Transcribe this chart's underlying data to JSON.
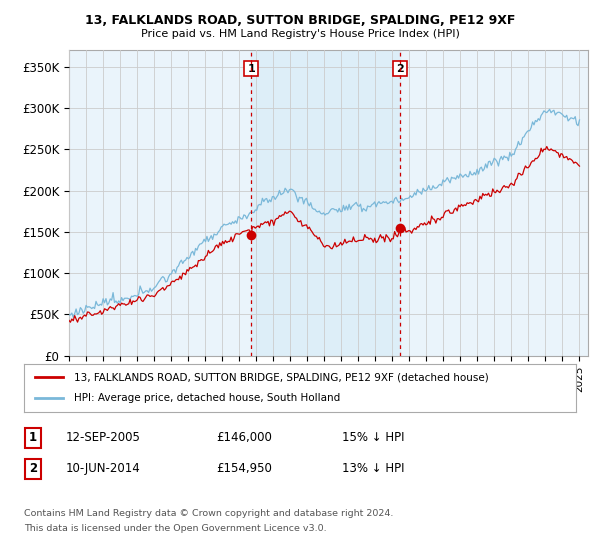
{
  "title1": "13, FALKLANDS ROAD, SUTTON BRIDGE, SPALDING, PE12 9XF",
  "title2": "Price paid vs. HM Land Registry's House Price Index (HPI)",
  "ylabel_ticks": [
    "£0",
    "£50K",
    "£100K",
    "£150K",
    "£200K",
    "£250K",
    "£300K",
    "£350K"
  ],
  "ytick_vals": [
    0,
    50000,
    100000,
    150000,
    200000,
    250000,
    300000,
    350000
  ],
  "ylim": [
    0,
    370000
  ],
  "xlim_start": 1995.0,
  "xlim_end": 2025.5,
  "sale1_year": 2005.7,
  "sale1_price": 146000,
  "sale2_year": 2014.45,
  "sale2_price": 154950,
  "hpi_color": "#7ab8d9",
  "price_color": "#cc0000",
  "vline_color": "#cc0000",
  "shade_color": "#ddeef8",
  "grid_color": "#cccccc",
  "bg_color": "#eaf4fb",
  "legend_label1": "13, FALKLANDS ROAD, SUTTON BRIDGE, SPALDING, PE12 9XF (detached house)",
  "legend_label2": "HPI: Average price, detached house, South Holland",
  "footer1": "Contains HM Land Registry data © Crown copyright and database right 2024.",
  "footer2": "This data is licensed under the Open Government Licence v3.0.",
  "table_row1": [
    "1",
    "12-SEP-2005",
    "£146,000",
    "15% ↓ HPI"
  ],
  "table_row2": [
    "2",
    "10-JUN-2014",
    "£154,950",
    "13% ↓ HPI"
  ]
}
